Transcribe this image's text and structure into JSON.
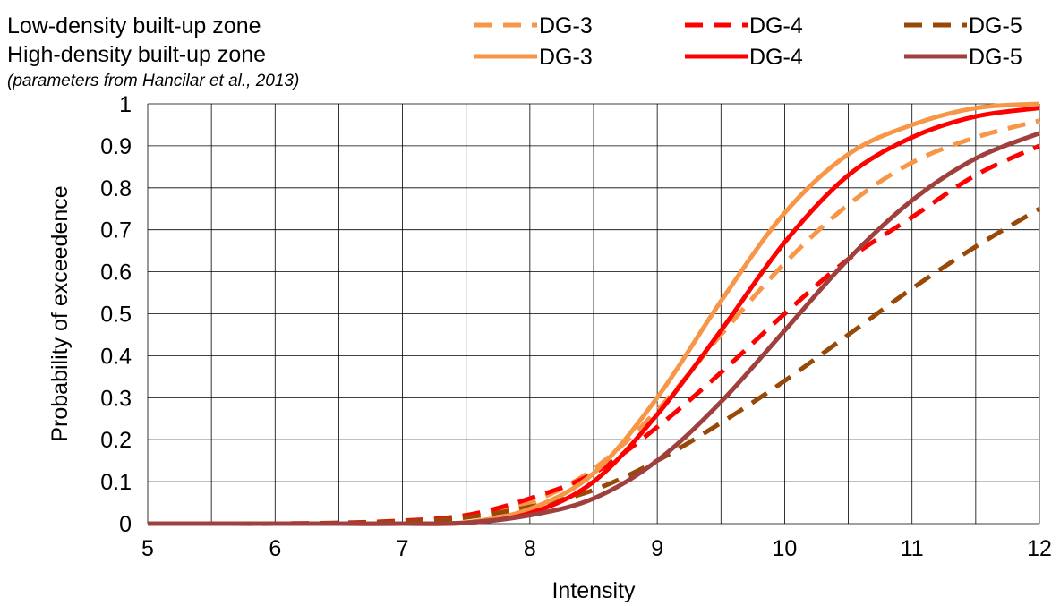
{
  "legend_group_1": "Low-density built-up zone",
  "legend_group_2": "High-density built-up zone",
  "legend_note": "(parameters from Hancilar et al., 2013)",
  "chart_data": {
    "type": "line",
    "xlabel": "Intensity",
    "ylabel": "Probability of exceedence",
    "xlim": [
      5,
      12
    ],
    "ylim": [
      0,
      1
    ],
    "xticks": [
      5,
      6,
      7,
      8,
      9,
      10,
      11,
      12
    ],
    "yticks": [
      0,
      0.1,
      0.2,
      0.3,
      0.4,
      0.5,
      0.6,
      0.7,
      0.8,
      0.9,
      1
    ],
    "xtick_labels": [
      "5",
      "6",
      "7",
      "8",
      "9",
      "10",
      "11",
      "12"
    ],
    "ytick_labels": [
      "0",
      "0.1",
      "0.2",
      "0.3",
      "0.4",
      "0.5",
      "0.6",
      "0.7",
      "0.8",
      "0.9",
      "1"
    ],
    "grid": true,
    "legend_position": "top",
    "x": [
      5,
      5.5,
      6,
      6.5,
      7,
      7.5,
      8,
      8.5,
      9,
      9.5,
      10,
      10.5,
      11,
      11.5,
      12
    ],
    "series": [
      {
        "name": "DG-3",
        "group": "low",
        "style": "dashed",
        "color": "#F79646",
        "values": [
          0,
          0,
          0,
          0.001,
          0.005,
          0.015,
          0.05,
          0.13,
          0.27,
          0.45,
          0.62,
          0.76,
          0.86,
          0.92,
          0.96
        ]
      },
      {
        "name": "DG-4",
        "group": "low",
        "style": "dashed",
        "color": "#FF0000",
        "values": [
          0,
          0,
          0,
          0.002,
          0.007,
          0.02,
          0.06,
          0.12,
          0.23,
          0.36,
          0.5,
          0.63,
          0.73,
          0.83,
          0.9
        ]
      },
      {
        "name": "DG-5",
        "group": "low",
        "style": "dashed",
        "color": "#984807",
        "values": [
          0,
          0,
          0,
          0.001,
          0.005,
          0.015,
          0.04,
          0.08,
          0.15,
          0.24,
          0.34,
          0.45,
          0.56,
          0.66,
          0.75
        ]
      },
      {
        "name": "DG-3",
        "group": "high",
        "style": "solid",
        "color": "#F79646",
        "values": [
          0,
          0,
          0,
          0,
          0,
          0.003,
          0.035,
          0.12,
          0.3,
          0.53,
          0.74,
          0.88,
          0.95,
          0.99,
          1
        ]
      },
      {
        "name": "DG-4",
        "group": "high",
        "style": "solid",
        "color": "#FF0000",
        "values": [
          0,
          0,
          0,
          0,
          0,
          0.002,
          0.025,
          0.1,
          0.26,
          0.46,
          0.67,
          0.83,
          0.92,
          0.97,
          0.99
        ]
      },
      {
        "name": "DG-5",
        "group": "high",
        "style": "solid",
        "color": "#A0403E",
        "values": [
          0,
          0,
          0,
          0,
          0,
          0.002,
          0.02,
          0.06,
          0.15,
          0.29,
          0.46,
          0.63,
          0.77,
          0.87,
          0.93
        ]
      }
    ]
  }
}
